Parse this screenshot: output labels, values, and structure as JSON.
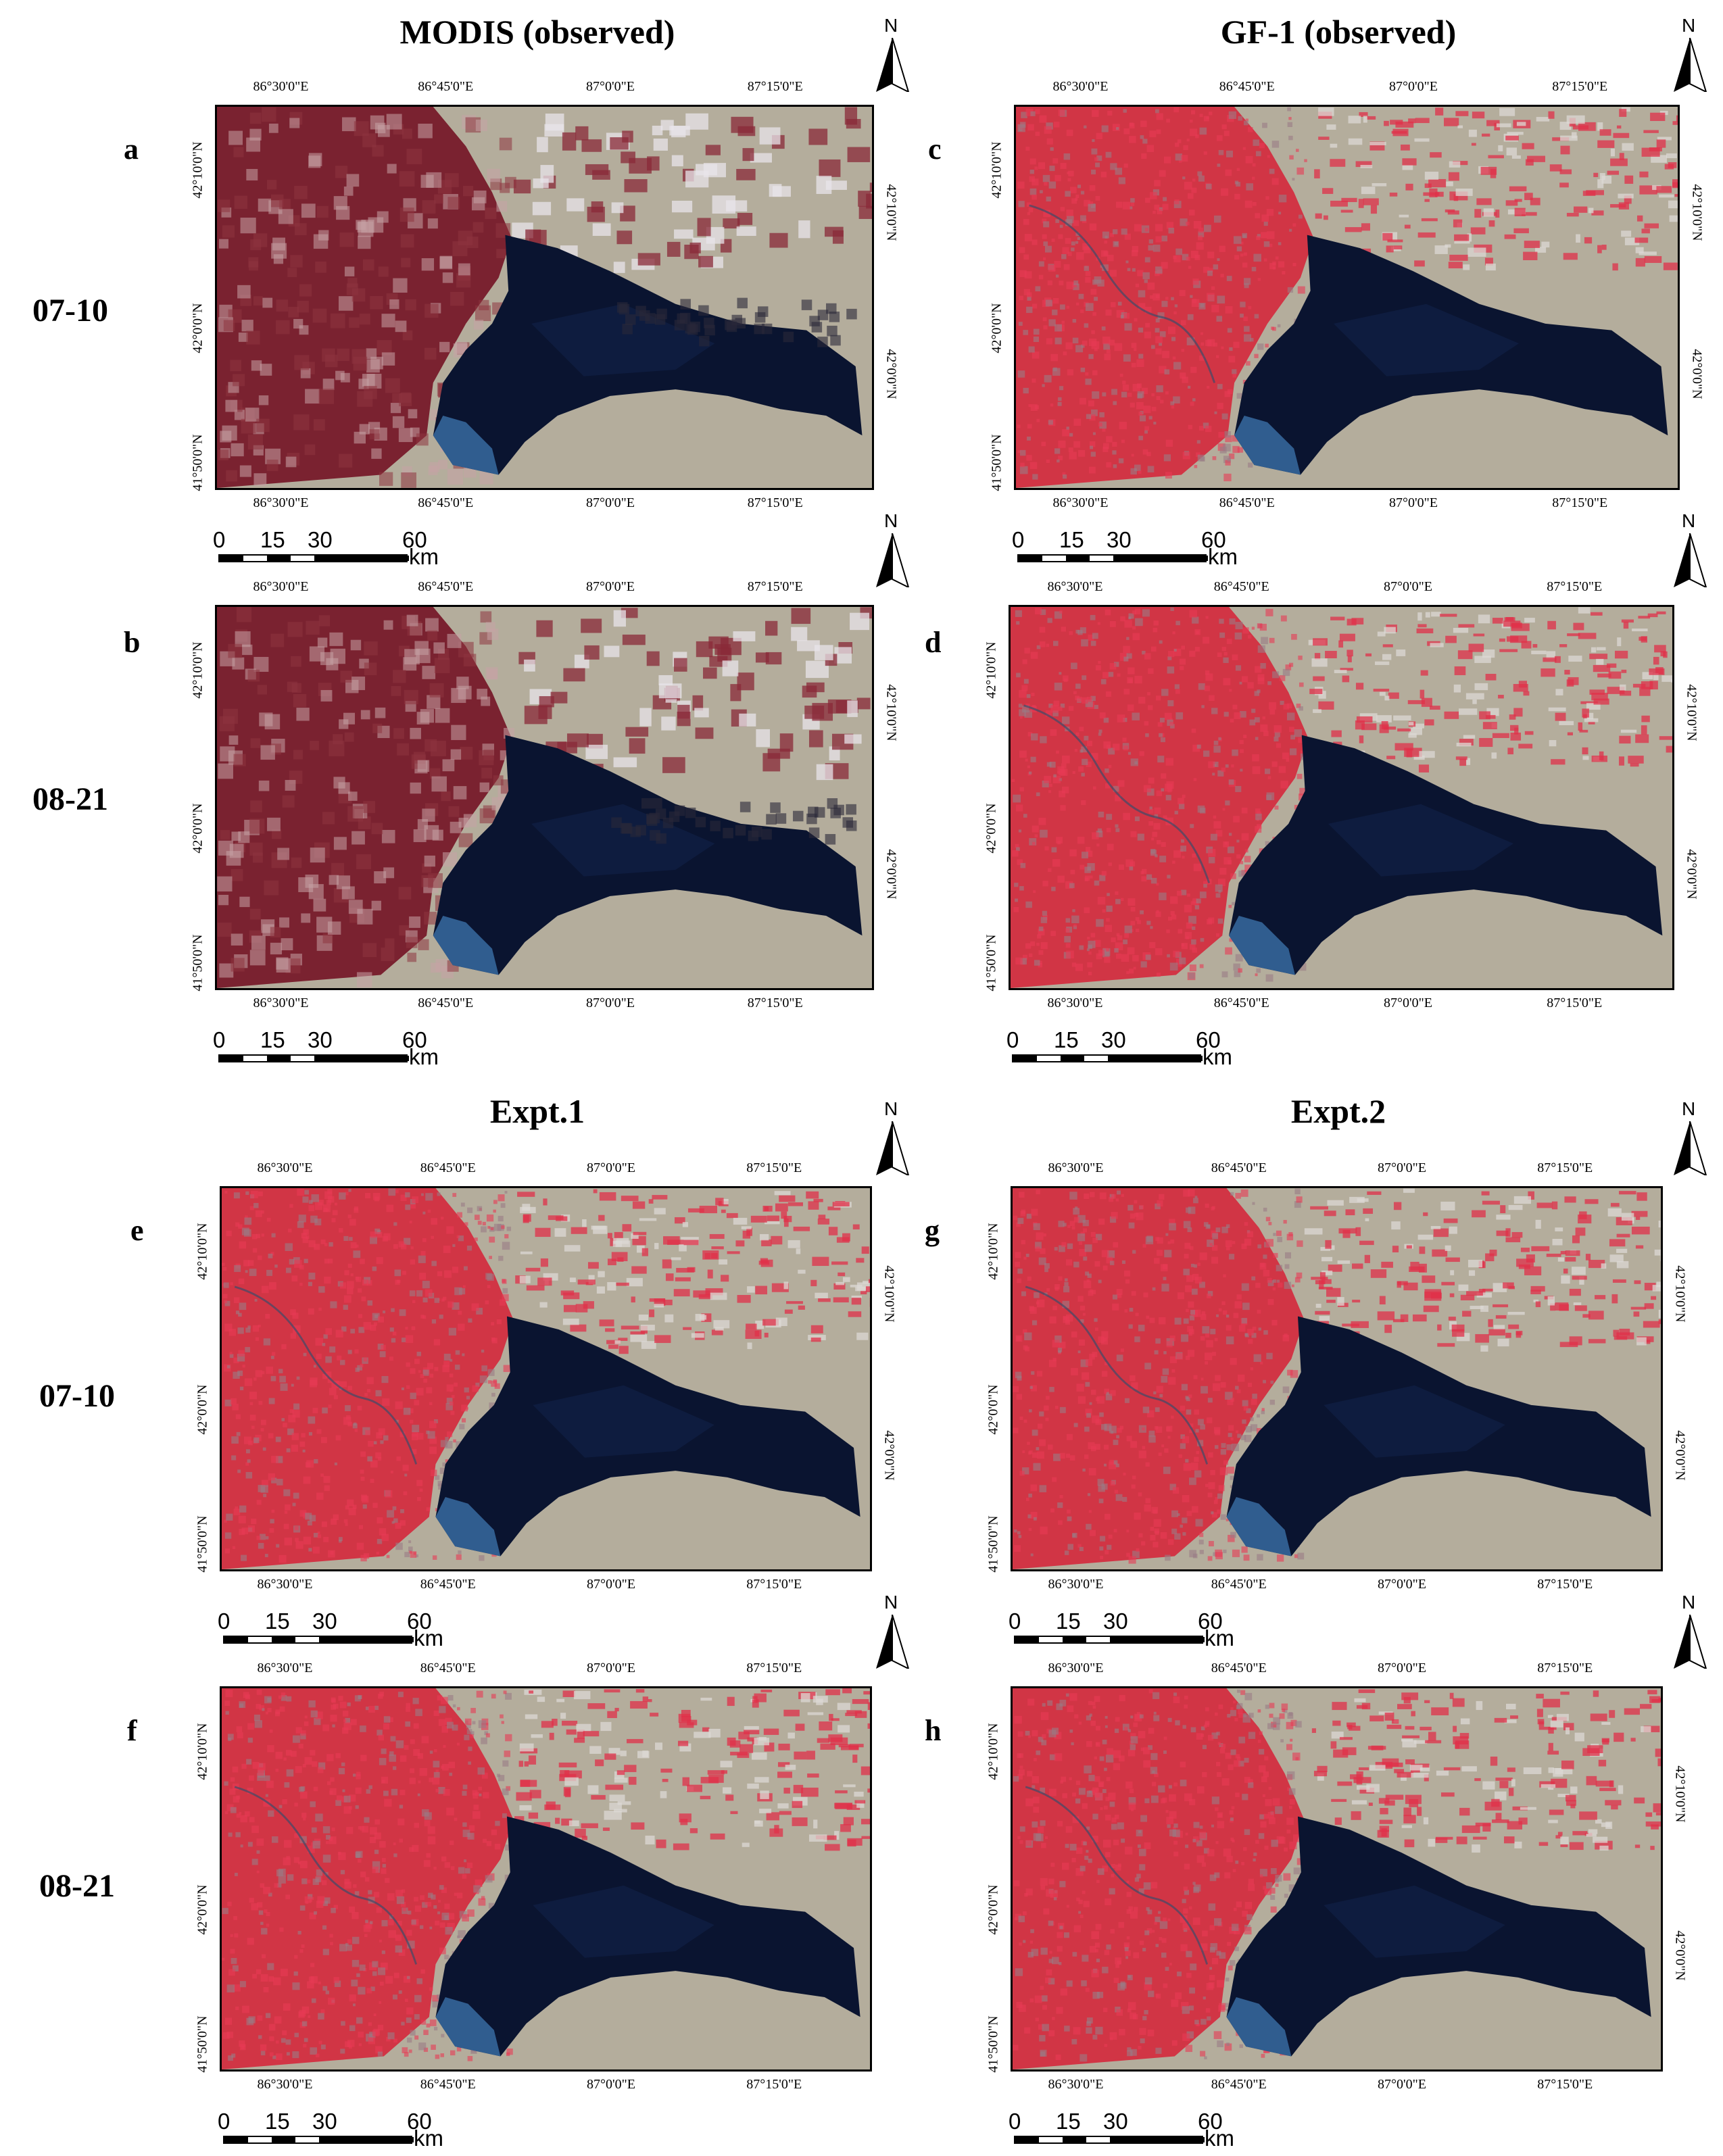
{
  "column_titles": {
    "top_left": "MODIS (observed)",
    "top_right": "GF-1 (observed)",
    "bottom_left": "Expt.1",
    "bottom_right": "Expt.2"
  },
  "dates": {
    "row1": "07-10",
    "row2": "08-21",
    "row3": "07-10",
    "row4": "08-21"
  },
  "panels": [
    {
      "letter": "a",
      "source": "MODIS",
      "style": "modis"
    },
    {
      "letter": "b",
      "source": "MODIS",
      "style": "modis"
    },
    {
      "letter": "c",
      "source": "GF-1",
      "style": "fine"
    },
    {
      "letter": "d",
      "source": "GF-1",
      "style": "fine"
    },
    {
      "letter": "e",
      "source": "Expt.1",
      "style": "fine"
    },
    {
      "letter": "f",
      "source": "Expt.1",
      "style": "fine"
    },
    {
      "letter": "g",
      "source": "Expt.2",
      "style": "fine"
    },
    {
      "letter": "h",
      "source": "Expt.2",
      "style": "fine"
    }
  ],
  "axes": {
    "lon_ticks": [
      "86°30'0\"E",
      "86°45'0\"E",
      "87°0'0\"E",
      "87°15'0\"E"
    ],
    "lat_left_ticks": [
      "42°10'0\"N",
      "42°0'0\"N",
      "41°50'0\"N"
    ],
    "lat_right_ticks": [
      "42°10'0\"N",
      "42°0'0\"N"
    ]
  },
  "scale_bar": {
    "labels": [
      "0",
      "15",
      "30",
      "60"
    ],
    "unit": "km"
  },
  "north_arrow": {
    "label": "N"
  },
  "colors": {
    "water": "#0a1430",
    "vegetation": "#d4283c",
    "bare_soil": "#b4ad9c",
    "modis_veg": "#7a2230",
    "shallow_water": "#3a6fa8"
  }
}
